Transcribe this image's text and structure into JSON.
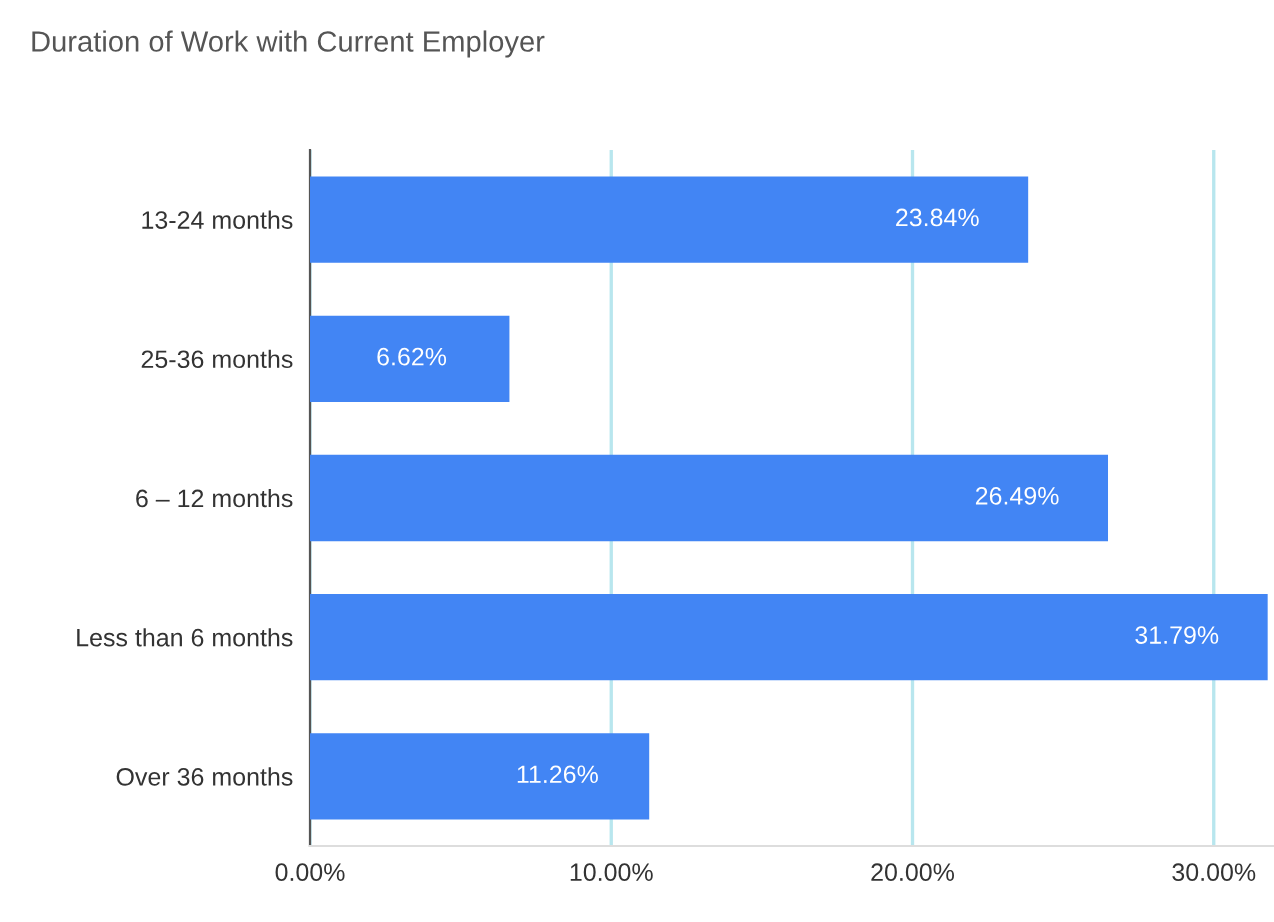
{
  "chart_data": {
    "type": "bar",
    "orientation": "horizontal",
    "title": "Duration of Work with Current Employer",
    "categories": [
      "13-24 months",
      "25-36 months",
      "6 – 12 months",
      "Less than 6 months",
      "Over 36 months"
    ],
    "values": [
      23.84,
      6.62,
      26.49,
      31.79,
      11.26
    ],
    "value_labels": [
      "23.84%",
      "6.62%",
      "26.49%",
      "31.79%",
      "11.26%"
    ],
    "color": "#4285f4",
    "xlim": [
      0,
      32
    ],
    "xticks": [
      {
        "value": 0,
        "label": "0.00%"
      },
      {
        "value": 10,
        "label": "10.00%"
      },
      {
        "value": 20,
        "label": "20.00%"
      },
      {
        "value": 30,
        "label": "30.00%"
      }
    ],
    "grid": "x"
  }
}
